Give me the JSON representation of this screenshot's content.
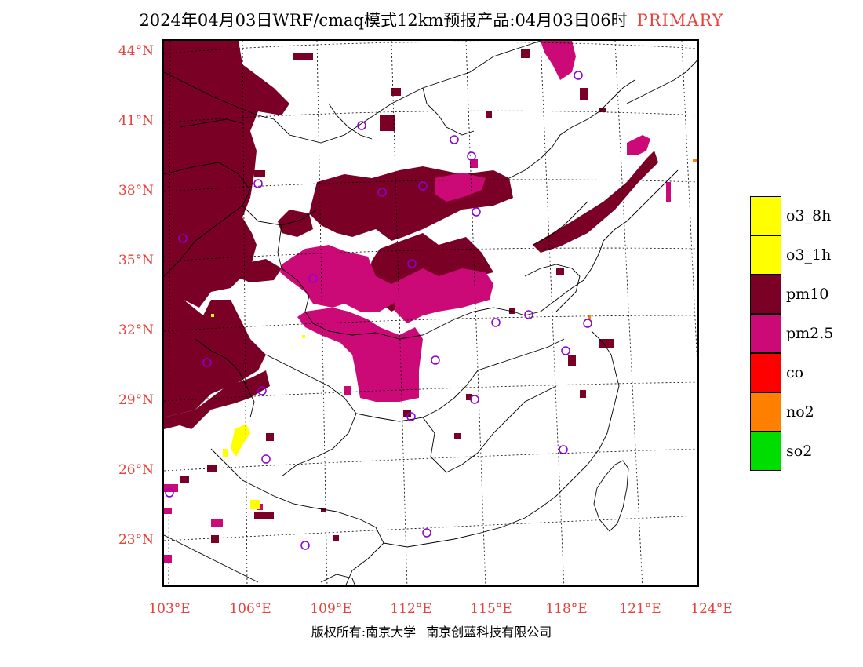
{
  "title": {
    "text": "2024年04月03日WRF/cmaq模式12km预报产品:04月03日06时",
    "tag": "PRIMARY"
  },
  "lat_labels": [
    "44°N",
    "41°N",
    "38°N",
    "35°N",
    "32°N",
    "29°N",
    "26°N",
    "23°N"
  ],
  "lon_labels": [
    "103°E",
    "106°E",
    "109°E",
    "112°E",
    "115°E",
    "118°E",
    "121°E",
    "124°E"
  ],
  "legend": [
    {
      "label": "o3_8h",
      "color": "#ffff00"
    },
    {
      "label": "o3_1h",
      "color": "#ffff00"
    },
    {
      "label": "pm10",
      "color": "#7a0026"
    },
    {
      "label": "pm2.5",
      "color": "#cc0a77"
    },
    {
      "label": "co",
      "color": "#ff0000"
    },
    {
      "label": "no2",
      "color": "#ff7f00"
    },
    {
      "label": "so2",
      "color": "#00dd00"
    }
  ],
  "colors": {
    "label_red": "#e8403a",
    "pm10": "#7a0026",
    "pm25": "#cc0a77",
    "o3": "#ffff00",
    "station_marker": "#8a00d4"
  },
  "copyright": {
    "left": "版权所有:南京大学",
    "right": "南京创蓝科技有限公司"
  }
}
